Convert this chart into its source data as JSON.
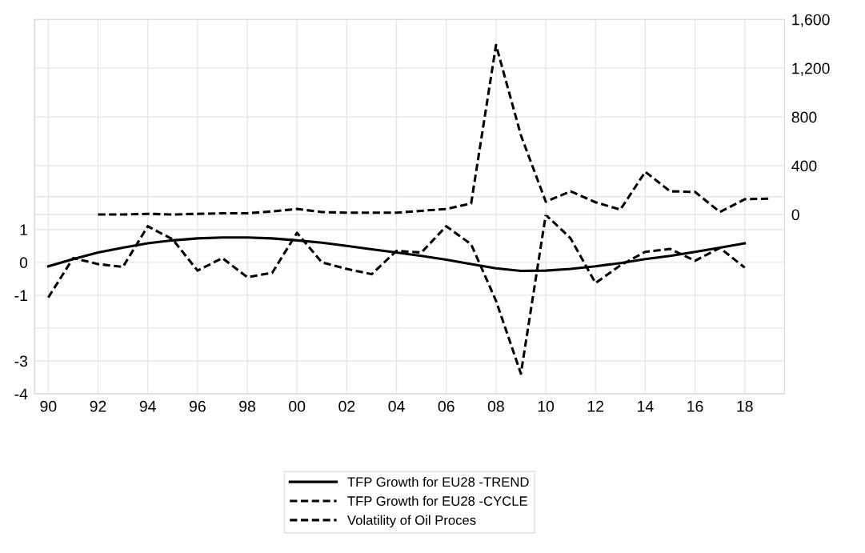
{
  "chart_data": {
    "type": "line",
    "x": [
      1990,
      1991,
      1992,
      1993,
      1994,
      1995,
      1996,
      1997,
      1998,
      1999,
      2000,
      2001,
      2002,
      2003,
      2004,
      2005,
      2006,
      2007,
      2008,
      2009,
      2010,
      2011,
      2012,
      2013,
      2014,
      2015,
      2016,
      2017,
      2018,
      2019
    ],
    "series": [
      {
        "name": "TFP Growth for EU28 -TREND",
        "color": "#000000",
        "line_style": "solid",
        "axis": "y",
        "values": [
          -0.12,
          0.1,
          0.3,
          0.45,
          0.58,
          0.67,
          0.73,
          0.76,
          0.76,
          0.73,
          0.67,
          0.6,
          0.5,
          0.4,
          0.3,
          0.2,
          0.08,
          -0.05,
          -0.18,
          -0.26,
          -0.25,
          -0.2,
          -0.12,
          -0.02,
          0.1,
          0.2,
          0.32,
          0.45,
          0.58,
          null
        ]
      },
      {
        "name": "TFP Growth for EU28 -CYCLE",
        "color": "#000000",
        "line_style": "dashed",
        "axis": "y",
        "values": [
          -1.07,
          0.13,
          -0.05,
          -0.14,
          1.1,
          0.7,
          -0.25,
          0.13,
          -0.45,
          -0.32,
          0.9,
          0.0,
          -0.2,
          -0.36,
          0.35,
          0.3,
          1.1,
          0.55,
          -1.17,
          -3.39,
          1.45,
          0.73,
          -0.63,
          -0.09,
          0.32,
          0.41,
          0.05,
          0.44,
          -0.16,
          null
        ]
      },
      {
        "name": "Volatility of Oil Proces",
        "color": "#000000",
        "line_style": "dashed",
        "axis": "y2",
        "values": [
          null,
          null,
          0,
          0,
          5,
          0,
          5,
          10,
          10,
          25,
          45,
          20,
          15,
          15,
          15,
          30,
          45,
          90,
          1390,
          650,
          105,
          190,
          100,
          40,
          350,
          190,
          185,
          20,
          125,
          130
        ]
      }
    ],
    "xlim": [
      1989.45,
      2019.6
    ],
    "xticks": [
      {
        "value": 1990,
        "label": "90"
      },
      {
        "value": 1992,
        "label": "92"
      },
      {
        "value": 1994,
        "label": "94"
      },
      {
        "value": 1996,
        "label": "96"
      },
      {
        "value": 1998,
        "label": "98"
      },
      {
        "value": 2000,
        "label": "00"
      },
      {
        "value": 2002,
        "label": "02"
      },
      {
        "value": 2004,
        "label": "04"
      },
      {
        "value": 2006,
        "label": "06"
      },
      {
        "value": 2008,
        "label": "08"
      },
      {
        "value": 2010,
        "label": "10"
      },
      {
        "value": 2012,
        "label": "12"
      },
      {
        "value": 2014,
        "label": "14"
      },
      {
        "value": 2016,
        "label": "16"
      },
      {
        "value": 2018,
        "label": "18"
      }
    ],
    "ylim": [
      -4,
      7.4
    ],
    "yticks": [
      -4,
      -3,
      {
        "value": -2,
        "label": null
      },
      -1,
      0,
      1,
      {
        "value": 2,
        "label": null
      }
    ],
    "y2lim": [
      -1470,
      1600
    ],
    "y2ticks": [
      0,
      {
        "value": 400,
        "label": "400"
      },
      {
        "value": 800,
        "label": "800"
      },
      {
        "value": 1200,
        "label": "1,200"
      },
      {
        "value": 1600,
        "label": "1,600"
      }
    ],
    "grid": true,
    "legend": "bottom",
    "marker": "none"
  }
}
